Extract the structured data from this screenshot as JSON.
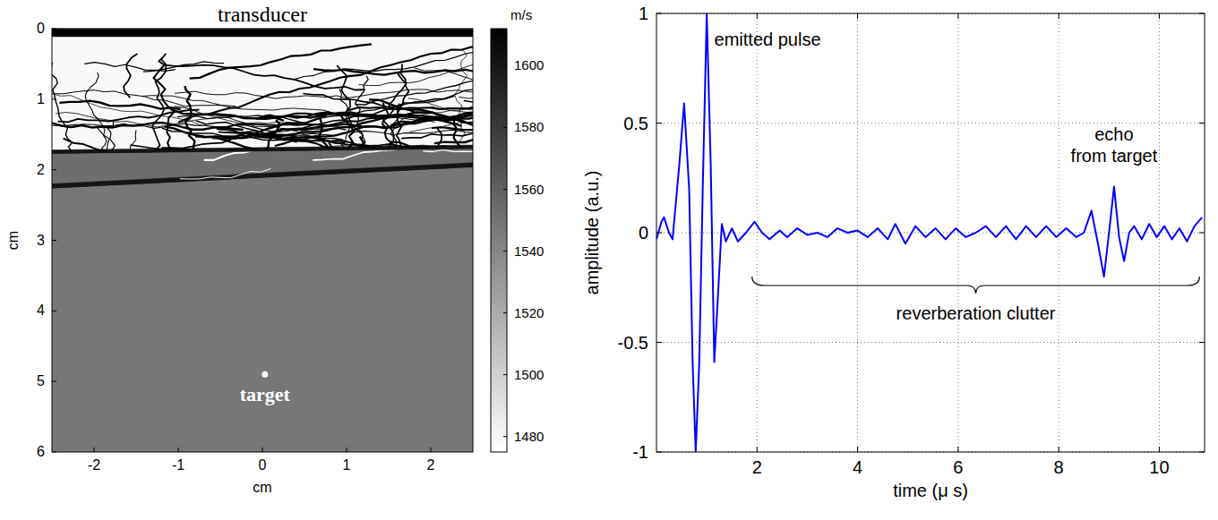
{
  "chart_data": [
    {
      "type": "image",
      "title": "transducer",
      "xlabel": "cm",
      "ylabel": "cm",
      "xlim": [
        -2.5,
        2.5
      ],
      "ylim": [
        6,
        0
      ],
      "xticks": [
        -2,
        -1,
        0,
        1,
        2
      ],
      "yticks": [
        0,
        1,
        2,
        3,
        4,
        5,
        6
      ],
      "regions": [
        {
          "speed": 1612,
          "top": [
            0,
            0
          ],
          "bottom": [
            0.12,
            0.12
          ]
        },
        {
          "speed": 1478,
          "top": [
            0.12,
            0.12
          ],
          "bottom": [
            1.75,
            1.68
          ]
        },
        {
          "speed": 1600,
          "top": [
            1.72,
            1.65
          ],
          "bottom": [
            1.78,
            1.71
          ]
        },
        {
          "speed": 1553,
          "top": [
            1.78,
            1.71
          ],
          "bottom": [
            2.25,
            1.95
          ]
        },
        {
          "speed": 1600,
          "top": [
            2.2,
            1.9
          ],
          "bottom": [
            2.27,
            1.97
          ]
        },
        {
          "speed": 1548,
          "top": [
            2.27,
            1.97
          ],
          "bottom": [
            6,
            6
          ]
        }
      ],
      "target": {
        "label": "target",
        "x": 0.03,
        "y": 4.9
      },
      "colorbar": {
        "title": "m/s",
        "range": [
          1475,
          1612
        ],
        "ticks": [
          1480,
          1500,
          1520,
          1540,
          1560,
          1580,
          1600
        ]
      }
    },
    {
      "type": "line",
      "xlabel": "time (μ s)",
      "ylabel": "amplitude (a.u.)",
      "color": "#0000ff",
      "grid": true,
      "xlim": [
        0,
        10.9
      ],
      "ylim": [
        -1,
        1
      ],
      "xticks": [
        2,
        4,
        6,
        8,
        10
      ],
      "yticks": [
        -1,
        -0.5,
        0,
        0.5,
        1
      ],
      "x": [
        0,
        0.1,
        0.15,
        0.25,
        0.32,
        0.45,
        0.55,
        0.65,
        0.72,
        0.78,
        0.85,
        0.92,
        1.0,
        1.08,
        1.15,
        1.22,
        1.3,
        1.38,
        1.5,
        1.62,
        1.78,
        1.95,
        2.1,
        2.25,
        2.45,
        2.6,
        2.8,
        3.0,
        3.2,
        3.4,
        3.6,
        3.8,
        4.0,
        4.2,
        4.4,
        4.6,
        4.75,
        4.95,
        5.15,
        5.35,
        5.55,
        5.75,
        5.95,
        6.15,
        6.35,
        6.55,
        6.75,
        6.95,
        7.15,
        7.35,
        7.55,
        7.75,
        7.95,
        8.15,
        8.35,
        8.5,
        8.65,
        8.78,
        8.9,
        9.0,
        9.1,
        9.2,
        9.3,
        9.4,
        9.5,
        9.65,
        9.8,
        9.95,
        10.1,
        10.25,
        10.4,
        10.55,
        10.7,
        10.85
      ],
      "values": [
        -0.03,
        0.05,
        0.07,
        0.0,
        -0.03,
        0.3,
        0.59,
        0.2,
        -0.6,
        -1.0,
        -0.6,
        0.2,
        1.0,
        0.3,
        -0.59,
        -0.3,
        0.04,
        -0.04,
        0.02,
        -0.04,
        0.0,
        0.05,
        0.0,
        -0.03,
        0.01,
        -0.02,
        0.02,
        -0.01,
        0.0,
        -0.02,
        0.02,
        0.0,
        0.01,
        -0.02,
        0.02,
        -0.03,
        0.04,
        -0.05,
        0.03,
        -0.02,
        0.02,
        -0.03,
        0.02,
        -0.02,
        0.0,
        0.03,
        -0.02,
        0.03,
        -0.03,
        0.03,
        -0.02,
        0.03,
        -0.02,
        0.02,
        -0.02,
        0.0,
        0.1,
        -0.05,
        -0.2,
        0.0,
        0.21,
        -0.02,
        -0.13,
        0.0,
        0.03,
        -0.03,
        0.04,
        -0.02,
        0.03,
        -0.03,
        0.02,
        -0.04,
        0.03,
        0.07
      ],
      "annotations": [
        {
          "text": "emitted pulse",
          "x": 1.15,
          "y": 0.88
        },
        {
          "text": "echo from target",
          "x": 9.1,
          "y": 0.42
        },
        {
          "text": "reverberation clutter",
          "x": [
            1.9,
            10.8
          ],
          "y": -0.2
        }
      ]
    }
  ]
}
